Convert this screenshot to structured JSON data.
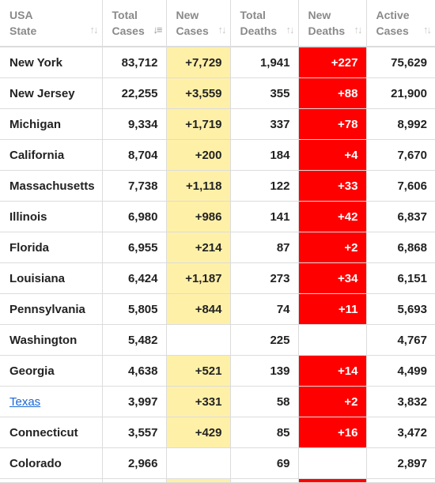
{
  "headers": [
    {
      "line1": "USA",
      "line2": "State"
    },
    {
      "line1": "Total",
      "line2": "Cases"
    },
    {
      "line1": "New",
      "line2": "Cases"
    },
    {
      "line1": "Total",
      "line2": "Deaths"
    },
    {
      "line1": "New",
      "line2": "Deaths"
    },
    {
      "line1": "Active",
      "line2": "Cases"
    }
  ],
  "rows": [
    {
      "state": "New York",
      "total_cases": "83,712",
      "new_cases": "+7,729",
      "total_deaths": "1,941",
      "new_deaths": "+227",
      "active_cases": "75,629"
    },
    {
      "state": "New Jersey",
      "total_cases": "22,255",
      "new_cases": "+3,559",
      "total_deaths": "355",
      "new_deaths": "+88",
      "active_cases": "21,900"
    },
    {
      "state": "Michigan",
      "total_cases": "9,334",
      "new_cases": "+1,719",
      "total_deaths": "337",
      "new_deaths": "+78",
      "active_cases": "8,992"
    },
    {
      "state": "California",
      "total_cases": "8,704",
      "new_cases": "+200",
      "total_deaths": "184",
      "new_deaths": "+4",
      "active_cases": "7,670"
    },
    {
      "state": "Massachusetts",
      "total_cases": "7,738",
      "new_cases": "+1,118",
      "total_deaths": "122",
      "new_deaths": "+33",
      "active_cases": "7,606"
    },
    {
      "state": "Illinois",
      "total_cases": "6,980",
      "new_cases": "+986",
      "total_deaths": "141",
      "new_deaths": "+42",
      "active_cases": "6,837"
    },
    {
      "state": "Florida",
      "total_cases": "6,955",
      "new_cases": "+214",
      "total_deaths": "87",
      "new_deaths": "+2",
      "active_cases": "6,868"
    },
    {
      "state": "Louisiana",
      "total_cases": "6,424",
      "new_cases": "+1,187",
      "total_deaths": "273",
      "new_deaths": "+34",
      "active_cases": "6,151"
    },
    {
      "state": "Pennsylvania",
      "total_cases": "5,805",
      "new_cases": "+844",
      "total_deaths": "74",
      "new_deaths": "+11",
      "active_cases": "5,693"
    },
    {
      "state": "Washington",
      "total_cases": "5,482",
      "new_cases": "",
      "total_deaths": "225",
      "new_deaths": "",
      "active_cases": "4,767"
    },
    {
      "state": "Georgia",
      "total_cases": "4,638",
      "new_cases": "+521",
      "total_deaths": "139",
      "new_deaths": "+14",
      "active_cases": "4,499"
    },
    {
      "state": "Texas",
      "total_cases": "3,997",
      "new_cases": "+331",
      "total_deaths": "58",
      "new_deaths": "+2",
      "active_cases": "3,832"
    },
    {
      "state": "Connecticut",
      "total_cases": "3,557",
      "new_cases": "+429",
      "total_deaths": "85",
      "new_deaths": "+16",
      "active_cases": "3,472"
    },
    {
      "state": "Colorado",
      "total_cases": "2,966",
      "new_cases": "",
      "total_deaths": "69",
      "new_deaths": "",
      "active_cases": "2,897"
    }
  ],
  "colors": {
    "new_cases_bg": "#fff0a8",
    "new_deaths_bg": "#ff0000",
    "link": "#1a66d6"
  },
  "icons": {
    "sort_default": "sort-icon",
    "sort_active": "sort-desc-icon"
  }
}
